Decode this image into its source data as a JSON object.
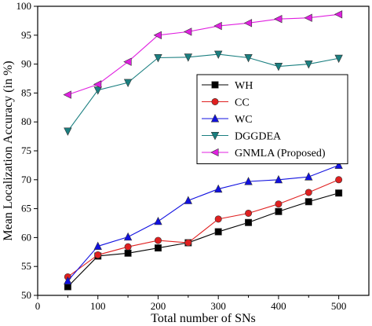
{
  "chart_data": {
    "type": "line",
    "title": "",
    "xlabel": "Total number of SNs",
    "ylabel": "Mean Localization Accuracy (in %)",
    "xlim": [
      0,
      550
    ],
    "ylim": [
      50,
      100
    ],
    "xticks": [
      0,
      100,
      200,
      300,
      400,
      500
    ],
    "yticks": [
      50,
      55,
      60,
      65,
      70,
      75,
      80,
      85,
      90,
      95,
      100
    ],
    "x": [
      50,
      100,
      150,
      200,
      250,
      300,
      350,
      400,
      450,
      500
    ],
    "grid": false,
    "legend_position": "center-right",
    "series": [
      {
        "name": "WH",
        "values": [
          51.5,
          56.8,
          57.3,
          58.2,
          59.1,
          61.0,
          62.6,
          64.5,
          66.2,
          67.7
        ],
        "color": "#000000",
        "marker": "square"
      },
      {
        "name": "CC",
        "values": [
          53.2,
          57.0,
          58.4,
          59.5,
          59.1,
          63.2,
          64.2,
          65.8,
          67.8,
          70.0
        ],
        "color": "#e02020",
        "marker": "circle"
      },
      {
        "name": "WC",
        "values": [
          52.5,
          58.5,
          60.1,
          62.8,
          66.4,
          68.4,
          69.7,
          70.0,
          70.5,
          72.5
        ],
        "color": "#1010e0",
        "marker": "triangle-up"
      },
      {
        "name": "DGGDEA",
        "values": [
          78.4,
          85.5,
          86.8,
          91.1,
          91.2,
          91.7,
          91.1,
          89.6,
          90.0,
          91.0
        ],
        "color": "#1a7f80",
        "marker": "triangle-down"
      },
      {
        "name": "GNMLA (Proposed)",
        "values": [
          84.7,
          86.5,
          90.4,
          95.0,
          95.6,
          96.6,
          97.1,
          97.8,
          98.0,
          98.6
        ],
        "color": "#e020e0",
        "marker": "triangle-left"
      }
    ]
  }
}
